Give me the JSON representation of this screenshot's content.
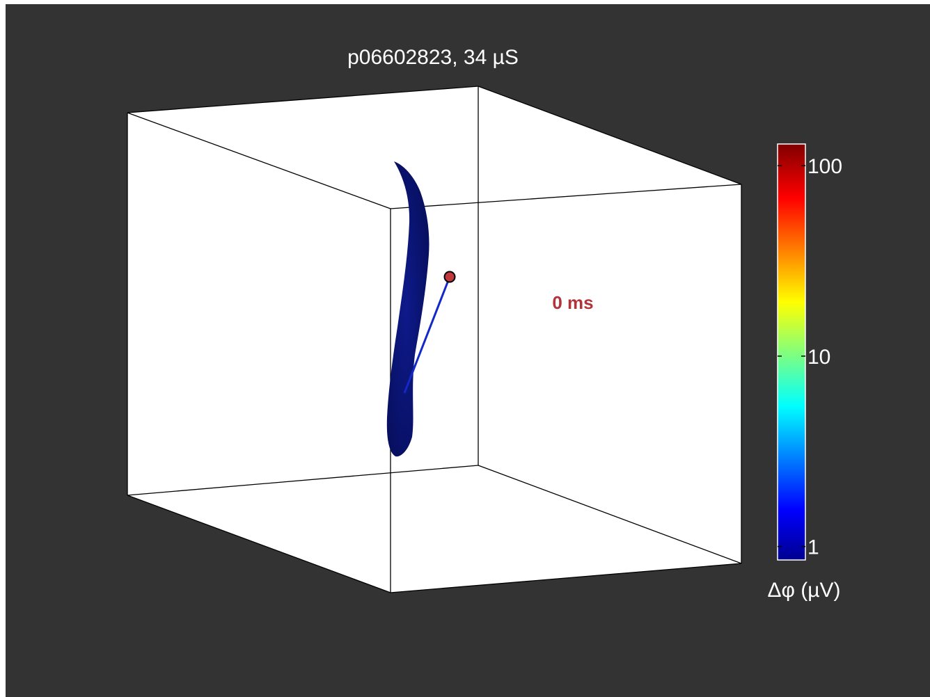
{
  "chart_data": {
    "type": "3d-isosurface",
    "title": "p06602823, 34 µS",
    "annotation": "0 ms",
    "box": {
      "visible": true,
      "color": "#ffffff",
      "edge_color": "#000000"
    },
    "isosurface_color": "#0a1373",
    "electrode_color": "#1328c8",
    "marker_color": "#c0393d",
    "colorbar": {
      "label": "Δφ (µV)",
      "scale": "log",
      "range": [
        0.85,
        130
      ],
      "colormap": "jet",
      "placement": "right",
      "ticks": [
        {
          "value": 1,
          "label": "1"
        },
        {
          "value": 10,
          "label": "10"
        },
        {
          "value": 100,
          "label": "100"
        }
      ]
    }
  }
}
